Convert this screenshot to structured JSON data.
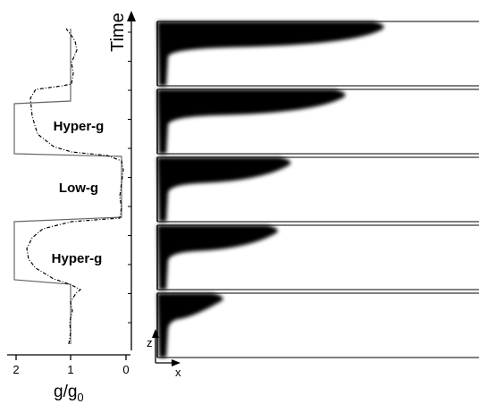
{
  "axis_time_label": "Time",
  "axis_g_label": "g/g",
  "axis_g_subscript": "0",
  "g_ticks": [
    "2",
    "1",
    "0"
  ],
  "phases": [
    "Hyper-g",
    "Low-g",
    "Hyper-g"
  ],
  "coord_z": "z",
  "coord_x": "x",
  "frames": [
    {
      "order": 1,
      "spread_fraction": 0.7
    },
    {
      "order": 2,
      "spread_fraction": 0.58
    },
    {
      "order": 3,
      "spread_fraction": 0.41
    },
    {
      "order": 4,
      "spread_fraction": 0.37
    },
    {
      "order": 5,
      "spread_fraction": 0.2
    }
  ],
  "ink_color": "#000000"
}
